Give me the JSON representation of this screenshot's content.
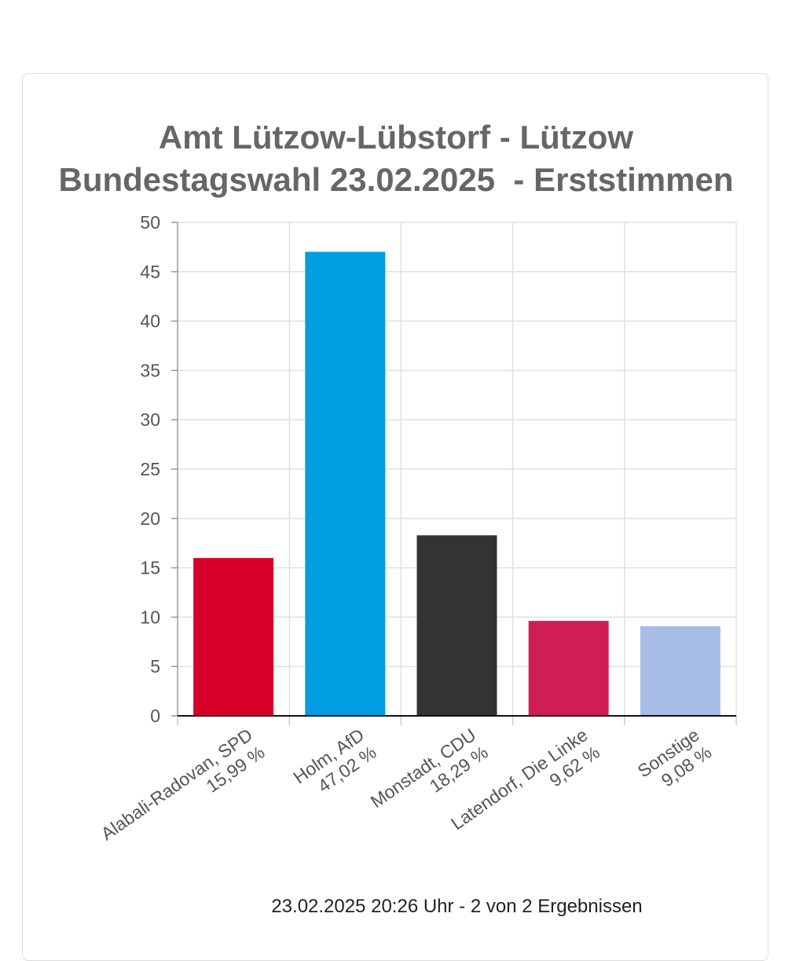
{
  "chart_data": {
    "type": "bar",
    "title": "Amt Lützow-Lübstorf - Lützow",
    "subtitle": "Bundestagswahl 23.02.2025  - Erststimmen",
    "xlabel": "",
    "ylabel": "",
    "ylim": [
      0,
      50
    ],
    "yticks": [
      "0",
      "5",
      "10",
      "15",
      "20",
      "25",
      "30",
      "35",
      "40",
      "45",
      "50"
    ],
    "grid": true,
    "categories": [
      {
        "name": "Alabali-Radovan, SPD",
        "pct_label": "15,99 %"
      },
      {
        "name": "Holm, AfD",
        "pct_label": "47,02 %"
      },
      {
        "name": "Monstadt, CDU",
        "pct_label": "18,29 %"
      },
      {
        "name": "Latendorf, Die Linke",
        "pct_label": "9,62 %"
      },
      {
        "name": "Sonstige",
        "pct_label": "9,08 %"
      }
    ],
    "values": [
      15.99,
      47.02,
      18.29,
      9.62,
      9.08
    ],
    "colors": [
      "#d7002a",
      "#009ee0",
      "#333333",
      "#d01e55",
      "#a8bde6"
    ]
  },
  "footer": "23.02.2025 20:26 Uhr - 2 von 2 Ergebnissen"
}
